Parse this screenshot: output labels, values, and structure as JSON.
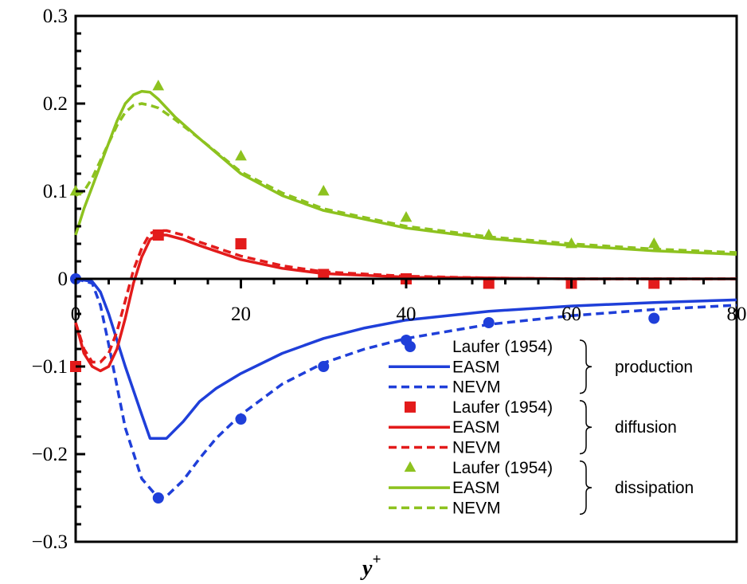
{
  "chart_data": {
    "type": "line",
    "xlabel": "y",
    "xlabel_superscript": "+",
    "ylabel": "",
    "xlim": [
      0,
      80
    ],
    "ylim": [
      -0.3,
      0.3
    ],
    "x_ticks": [
      "0",
      "20",
      "40",
      "60",
      "80"
    ],
    "y_ticks": [
      "0.3",
      "0.2",
      "0.1",
      "0",
      "−0.1",
      "−0.2",
      "−0.3"
    ],
    "y_tick_values": [
      0.3,
      0.2,
      0.1,
      0,
      -0.1,
      -0.2,
      -0.3
    ],
    "x_tick_values": [
      0,
      20,
      40,
      60,
      80
    ],
    "grid": false,
    "legend_position": "lower-right",
    "series": [
      {
        "name": "Laufer (1954)",
        "group": "production",
        "kind": "scatter",
        "marker": "circle",
        "color": "#1f3fd9",
        "x": [
          0,
          10,
          20,
          30,
          40,
          50,
          70
        ],
        "y": [
          0,
          -0.25,
          -0.16,
          -0.1,
          -0.07,
          -0.05,
          -0.045
        ]
      },
      {
        "name": "EASM",
        "group": "production",
        "kind": "line",
        "dash": "solid",
        "color": "#1f3fd9",
        "x": [
          0,
          2,
          3,
          4,
          6,
          8,
          9,
          11,
          13,
          15,
          17,
          20,
          25,
          30,
          35,
          40,
          50,
          60,
          70,
          80
        ],
        "y": [
          0,
          -0.003,
          -0.015,
          -0.04,
          -0.1,
          -0.155,
          -0.182,
          -0.182,
          -0.163,
          -0.14,
          -0.125,
          -0.108,
          -0.085,
          -0.068,
          -0.056,
          -0.047,
          -0.037,
          -0.031,
          -0.027,
          -0.024
        ]
      },
      {
        "name": "NEVM",
        "group": "production",
        "kind": "line",
        "dash": "dashed",
        "color": "#1f3fd9",
        "x": [
          0,
          2,
          3,
          4,
          6,
          8,
          10,
          11,
          13,
          15,
          17,
          20,
          25,
          30,
          35,
          40,
          50,
          60,
          70,
          80
        ],
        "y": [
          0,
          -0.005,
          -0.03,
          -0.075,
          -0.17,
          -0.228,
          -0.25,
          -0.248,
          -0.23,
          -0.205,
          -0.182,
          -0.155,
          -0.12,
          -0.096,
          -0.08,
          -0.068,
          -0.052,
          -0.042,
          -0.035,
          -0.03
        ]
      },
      {
        "name": "Laufer (1954)",
        "group": "diffusion",
        "kind": "scatter",
        "marker": "square",
        "color": "#e31b1b",
        "x": [
          0,
          10,
          20,
          30,
          40,
          50,
          60,
          70
        ],
        "y": [
          -0.1,
          0.05,
          0.04,
          0.005,
          0,
          -0.005,
          -0.005,
          -0.005
        ]
      },
      {
        "name": "EASM",
        "group": "diffusion",
        "kind": "line",
        "dash": "solid",
        "color": "#e31b1b",
        "x": [
          0,
          1,
          2,
          3,
          4,
          5,
          6,
          7,
          8,
          9,
          10,
          11,
          13,
          15,
          20,
          25,
          30,
          40,
          50,
          60,
          70,
          80
        ],
        "y": [
          -0.05,
          -0.085,
          -0.1,
          -0.105,
          -0.1,
          -0.08,
          -0.045,
          -0.005,
          0.025,
          0.045,
          0.05,
          0.05,
          0.045,
          0.038,
          0.022,
          0.012,
          0.006,
          0.002,
          0.001,
          0,
          0,
          0
        ]
      },
      {
        "name": "NEVM",
        "group": "diffusion",
        "kind": "line",
        "dash": "dashed",
        "color": "#e31b1b",
        "x": [
          0,
          1,
          2,
          3,
          4,
          5,
          6,
          7,
          8,
          9,
          10,
          11,
          13,
          15,
          20,
          25,
          30,
          40,
          50,
          60,
          70,
          80
        ],
        "y": [
          -0.05,
          -0.08,
          -0.095,
          -0.095,
          -0.085,
          -0.06,
          -0.025,
          0.01,
          0.035,
          0.052,
          0.055,
          0.055,
          0.05,
          0.042,
          0.026,
          0.015,
          0.008,
          0.003,
          0.001,
          0,
          0,
          0
        ]
      },
      {
        "name": "Laufer (1954)",
        "group": "dissipation",
        "kind": "scatter",
        "marker": "triangle",
        "color": "#8dc21f",
        "x": [
          0,
          10,
          20,
          30,
          40,
          50,
          60,
          70
        ],
        "y": [
          0.1,
          0.22,
          0.14,
          0.1,
          0.07,
          0.05,
          0.04,
          0.04
        ]
      },
      {
        "name": "EASM",
        "group": "dissipation",
        "kind": "line",
        "dash": "solid",
        "color": "#8dc21f",
        "x": [
          0,
          1,
          2,
          3,
          4,
          5,
          6,
          7,
          8,
          9,
          10,
          12,
          15,
          20,
          25,
          30,
          40,
          50,
          60,
          70,
          80
        ],
        "y": [
          0.05,
          0.08,
          0.105,
          0.13,
          0.155,
          0.18,
          0.2,
          0.21,
          0.214,
          0.213,
          0.205,
          0.185,
          0.16,
          0.12,
          0.095,
          0.078,
          0.058,
          0.046,
          0.038,
          0.032,
          0.028
        ]
      },
      {
        "name": "NEVM",
        "group": "dissipation",
        "kind": "line",
        "dash": "dashed",
        "color": "#8dc21f",
        "x": [
          0,
          1,
          2,
          3,
          4,
          5,
          6,
          7,
          8,
          9,
          10,
          12,
          15,
          20,
          25,
          30,
          40,
          50,
          60,
          70,
          80
        ],
        "y": [
          0.095,
          0.1,
          0.115,
          0.135,
          0.155,
          0.175,
          0.19,
          0.198,
          0.2,
          0.198,
          0.195,
          0.182,
          0.16,
          0.122,
          0.098,
          0.08,
          0.06,
          0.048,
          0.04,
          0.034,
          0.03
        ]
      }
    ],
    "legend_groups": [
      {
        "label": "production",
        "entries": [
          0,
          1,
          2
        ]
      },
      {
        "label": "diffusion",
        "entries": [
          3,
          4,
          5
        ]
      },
      {
        "label": "dissipation",
        "entries": [
          6,
          7,
          8
        ]
      }
    ]
  }
}
